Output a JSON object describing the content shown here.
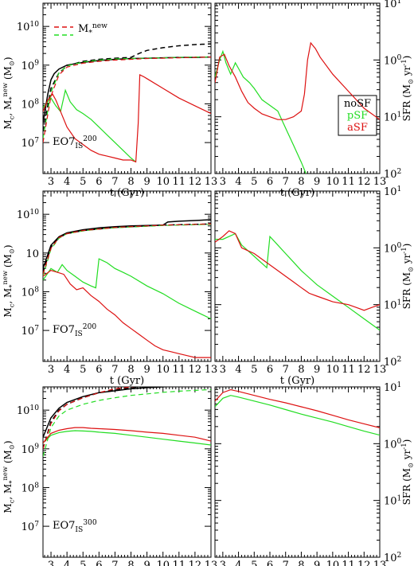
{
  "figure": {
    "xlabel": "t (Gyr)",
    "ylabel_left": "M_c, M_*^new (M_⊙)",
    "ylabel_right": "SFR (M_⊙ yr^-1)",
    "xticks": [
      "3",
      "4",
      "5",
      "6",
      "7",
      "8",
      "9",
      "10",
      "11",
      "12",
      "13"
    ],
    "legend_top": {
      "label": "M_*^new"
    },
    "legend_sfr": [
      "noSF",
      "pSF",
      "aSF"
    ],
    "colors": {
      "noSF": "#000000",
      "pSF": "#22dd22",
      "aSF": "#dd1111"
    }
  },
  "chart_data": [
    {
      "type": "line",
      "panel": "EO7_IS^200 mass",
      "annotation": "EO7_IS^200",
      "xlim": [
        2.5,
        13
      ],
      "ylim_log10": [
        6.2,
        10.6
      ],
      "yscale": "log",
      "yticks": [
        "10^7",
        "10^8",
        "10^9",
        "10^10"
      ],
      "series": [
        {
          "name": "noSF",
          "style": "solid",
          "x": [
            2.5,
            2.8,
            3.0,
            3.2,
            3.5,
            4,
            5,
            6,
            7,
            8,
            9,
            10,
            11,
            12,
            13
          ],
          "y": [
            7.5,
            8.25,
            8.62,
            8.78,
            8.9,
            9.0,
            9.07,
            9.12,
            9.15,
            9.17,
            9.18,
            9.19,
            9.2,
            9.2,
            9.21
          ]
        },
        {
          "name": "noSF M_*^new",
          "style": "dashed",
          "x": [
            2.5,
            3.0,
            3.5,
            4,
            5,
            6,
            7,
            8,
            8.5,
            9,
            10,
            11,
            12,
            13
          ],
          "y": [
            7.3,
            8.4,
            8.8,
            8.98,
            9.1,
            9.15,
            9.18,
            9.2,
            9.3,
            9.38,
            9.45,
            9.5,
            9.53,
            9.55
          ]
        },
        {
          "name": "pSF",
          "style": "solid",
          "x": [
            2.5,
            3,
            3.3,
            3.6,
            3.9,
            4.2,
            4.6,
            5,
            5.5,
            6,
            6.5,
            7,
            7.5,
            8,
            8.3
          ],
          "y": [
            7.9,
            8.15,
            7.95,
            7.8,
            8.35,
            8.05,
            7.85,
            7.75,
            7.6,
            7.4,
            7.2,
            7.0,
            6.8,
            6.6,
            6.5
          ]
        },
        {
          "name": "pSF M_*^new",
          "style": "dashed",
          "x": [
            2.5,
            3,
            3.5,
            4,
            5,
            6,
            7,
            8,
            9,
            10,
            11,
            12,
            13
          ],
          "y": [
            7.1,
            8.3,
            8.8,
            8.98,
            9.08,
            9.13,
            9.16,
            9.17,
            9.18,
            9.19,
            9.2,
            9.21,
            9.21
          ]
        },
        {
          "name": "aSF",
          "style": "solid",
          "x": [
            2.5,
            2.8,
            3.1,
            3.3,
            3.6,
            4,
            4.5,
            5,
            5.5,
            6,
            6.5,
            7,
            7.5,
            8,
            8.3,
            8.45,
            8.55,
            8.8,
            9,
            10,
            11,
            12,
            13
          ],
          "y": [
            7.8,
            8.1,
            8.25,
            8.1,
            7.8,
            7.4,
            7.1,
            6.95,
            6.8,
            6.7,
            6.65,
            6.6,
            6.55,
            6.55,
            6.5,
            7.5,
            8.75,
            8.7,
            8.65,
            8.4,
            8.15,
            7.95,
            7.75
          ]
        },
        {
          "name": "aSF M_*^new",
          "style": "dashed",
          "x": [
            2.5,
            3,
            3.5,
            4,
            5,
            6,
            7,
            8,
            9,
            10,
            11,
            12,
            13
          ],
          "y": [
            7.0,
            8.2,
            8.75,
            8.95,
            9.05,
            9.1,
            9.13,
            9.15,
            9.17,
            9.18,
            9.19,
            9.2,
            9.21
          ]
        }
      ]
    },
    {
      "type": "line",
      "panel": "EO7_IS^200 SFR",
      "xlim": [
        2.5,
        13
      ],
      "ylim_log10": [
        -2,
        1
      ],
      "yscale": "log",
      "yaxis": "right",
      "yticks": [
        "10^1",
        "10^0",
        "10^1",
        "10^2"
      ],
      "series": [
        {
          "name": "pSF",
          "x": [
            2.5,
            2.8,
            3.0,
            3.2,
            3.5,
            3.8,
            4.0,
            4.3,
            4.7,
            5,
            5.5,
            6,
            6.5,
            7,
            7.5,
            8,
            8.3
          ],
          "y": [
            -0.3,
            0.0,
            0.15,
            -0.05,
            -0.25,
            -0.05,
            -0.15,
            -0.3,
            -0.4,
            -0.5,
            -0.7,
            -0.8,
            -0.9,
            -1.2,
            -1.5,
            -1.8,
            -2.0
          ]
        },
        {
          "name": "aSF",
          "x": [
            2.5,
            2.8,
            3.1,
            3.4,
            3.8,
            4.2,
            4.6,
            5,
            5.5,
            6,
            6.5,
            7,
            7.5,
            8,
            8.2,
            8.4,
            8.6,
            8.9,
            9.2,
            10,
            11,
            12,
            13
          ],
          "y": [
            -0.4,
            0.05,
            0.1,
            -0.1,
            -0.3,
            -0.55,
            -0.75,
            -0.85,
            -0.95,
            -1.0,
            -1.05,
            -1.05,
            -1.0,
            -0.9,
            -0.6,
            0.0,
            0.3,
            0.2,
            0.05,
            -0.25,
            -0.55,
            -0.85,
            -1.05
          ]
        }
      ]
    },
    {
      "type": "line",
      "panel": "FO7_IS^200 mass",
      "annotation": "FO7_IS^200",
      "xlim": [
        2.5,
        13
      ],
      "ylim_log10": [
        6.2,
        10.6
      ],
      "yscale": "log",
      "yticks": [
        "10^7",
        "10^8",
        "10",
        "10^10"
      ],
      "series": [
        {
          "name": "noSF",
          "style": "solid",
          "x": [
            2.5,
            3,
            3.5,
            4,
            5,
            6,
            7,
            8,
            9,
            10,
            10.3,
            11,
            12,
            13
          ],
          "y": [
            8.6,
            9.2,
            9.42,
            9.52,
            9.6,
            9.65,
            9.68,
            9.7,
            9.71,
            9.72,
            9.8,
            9.82,
            9.84,
            9.86
          ]
        },
        {
          "name": "noSF M_*^new",
          "style": "dashed",
          "x": [
            2.5,
            3,
            3.5,
            4,
            5,
            6,
            7,
            8,
            9,
            10,
            11,
            12,
            13
          ],
          "y": [
            8.5,
            9.15,
            9.4,
            9.5,
            9.58,
            9.62,
            9.66,
            9.68,
            9.7,
            9.72,
            9.73,
            9.74,
            9.75
          ]
        },
        {
          "name": "pSF",
          "style": "solid",
          "x": [
            2.5,
            3,
            3.4,
            3.7,
            4,
            4.5,
            5,
            5.5,
            5.8,
            6,
            6.5,
            7,
            7.5,
            8,
            9,
            10,
            11,
            12,
            13
          ],
          "y": [
            8.3,
            8.6,
            8.5,
            8.7,
            8.55,
            8.4,
            8.25,
            8.15,
            8.1,
            8.85,
            8.75,
            8.6,
            8.5,
            8.4,
            8.15,
            7.95,
            7.7,
            7.5,
            7.3
          ]
        },
        {
          "name": "pSF M_*^new",
          "style": "dashed",
          "x": [
            2.5,
            3,
            3.5,
            4,
            5,
            6,
            7,
            8,
            9,
            10,
            11,
            12,
            13
          ],
          "y": [
            8.4,
            9.1,
            9.38,
            9.5,
            9.57,
            9.62,
            9.65,
            9.67,
            9.69,
            9.71,
            9.72,
            9.73,
            9.74
          ]
        },
        {
          "name": "aSF",
          "style": "solid",
          "x": [
            2.5,
            3,
            3.4,
            3.8,
            4.2,
            4.6,
            5,
            5.5,
            6,
            6.5,
            7,
            7.5,
            8,
            8.5,
            9,
            9.5,
            10,
            10.5,
            11,
            11.5,
            12,
            12.5,
            13
          ],
          "y": [
            8.4,
            8.55,
            8.5,
            8.45,
            8.2,
            8.05,
            8.1,
            7.9,
            7.75,
            7.55,
            7.4,
            7.2,
            7.05,
            6.9,
            6.75,
            6.6,
            6.5,
            6.45,
            6.4,
            6.35,
            6.3,
            6.3,
            6.3
          ]
        },
        {
          "name": "aSF M_*^new",
          "style": "dashed",
          "x": [
            2.5,
            3,
            3.5,
            4,
            5,
            6,
            7,
            8,
            9,
            10,
            11,
            12,
            13
          ],
          "y": [
            8.45,
            9.12,
            9.4,
            9.5,
            9.58,
            9.62,
            9.66,
            9.68,
            9.7,
            9.72,
            9.73,
            9.74,
            9.75
          ]
        }
      ]
    },
    {
      "type": "line",
      "panel": "FO7_IS^200 SFR",
      "xlim": [
        2.5,
        13
      ],
      "ylim_log10": [
        -2,
        1
      ],
      "yscale": "log",
      "yaxis": "right",
      "yticks": [
        "10^1",
        "10^0",
        "10^1",
        "10^2"
      ],
      "series": [
        {
          "name": "pSF",
          "x": [
            2.5,
            3,
            3.4,
            3.8,
            4.2,
            4.6,
            5,
            5.4,
            5.8,
            6,
            6.5,
            7,
            7.5,
            8,
            9,
            10,
            11,
            12,
            13
          ],
          "y": [
            0.15,
            0.15,
            0.2,
            0.25,
            0.05,
            -0.05,
            -0.15,
            -0.25,
            -0.35,
            0.2,
            0.05,
            -0.1,
            -0.25,
            -0.4,
            -0.65,
            -0.85,
            -1.05,
            -1.25,
            -1.45
          ]
        },
        {
          "name": "aSF",
          "x": [
            2.5,
            3,
            3.4,
            3.8,
            4.2,
            4.6,
            5,
            5.5,
            6,
            6.5,
            7,
            7.5,
            8,
            8.5,
            9,
            9.5,
            10,
            11,
            11.5,
            12,
            12.5,
            13
          ],
          "y": [
            0.1,
            0.2,
            0.3,
            0.25,
            0.0,
            -0.05,
            -0.1,
            -0.2,
            -0.3,
            -0.4,
            -0.5,
            -0.6,
            -0.7,
            -0.8,
            -0.85,
            -0.9,
            -0.95,
            -1.0,
            -1.05,
            -1.1,
            -1.05,
            -1.0
          ]
        }
      ]
    },
    {
      "type": "line",
      "panel": "EO7_IS^300 mass",
      "annotation": "EO7_IS^300",
      "xlim": [
        2.5,
        13
      ],
      "ylim_log10": [
        6.2,
        10.6
      ],
      "yscale": "log",
      "yticks": [
        "10^7",
        "10^8",
        "10^9",
        "10^10"
      ],
      "series": [
        {
          "name": "noSF",
          "style": "solid",
          "x": [
            2.5,
            3,
            3.5,
            4,
            5,
            6,
            7,
            8,
            9,
            10,
            11,
            12,
            13
          ],
          "y": [
            9.3,
            9.8,
            10.05,
            10.2,
            10.35,
            10.45,
            10.5,
            10.55,
            10.58,
            10.6,
            10.62,
            10.63,
            10.65
          ]
        },
        {
          "name": "noSF M_*^new",
          "style": "dashed",
          "x": [
            2.5,
            3,
            3.5,
            4,
            5,
            6,
            7,
            8,
            9,
            10,
            11,
            12,
            13
          ],
          "y": [
            9.0,
            9.7,
            10.0,
            10.15,
            10.32,
            10.45,
            10.53,
            10.58,
            10.62,
            10.65,
            10.68,
            10.7,
            10.72
          ]
        },
        {
          "name": "pSF",
          "style": "solid",
          "x": [
            2.5,
            3,
            3.5,
            4,
            4.5,
            5,
            5.5,
            6,
            7,
            8,
            9,
            10,
            11,
            12,
            13
          ],
          "y": [
            9.15,
            9.35,
            9.42,
            9.45,
            9.47,
            9.46,
            9.45,
            9.43,
            9.4,
            9.35,
            9.3,
            9.25,
            9.2,
            9.15,
            9.1
          ]
        },
        {
          "name": "pSF M_*^new",
          "style": "dashed",
          "x": [
            2.5,
            3,
            3.5,
            4,
            5,
            6,
            7,
            8,
            9,
            10,
            11,
            12,
            13
          ],
          "y": [
            8.8,
            9.55,
            9.85,
            10.0,
            10.15,
            10.25,
            10.32,
            10.38,
            10.42,
            10.46,
            10.49,
            10.51,
            10.53
          ]
        },
        {
          "name": "aSF",
          "style": "solid",
          "x": [
            2.5,
            3,
            3.5,
            4,
            4.5,
            5,
            5.5,
            6,
            7,
            8,
            9,
            10,
            11,
            12,
            13
          ],
          "y": [
            9.15,
            9.4,
            9.48,
            9.52,
            9.55,
            9.55,
            9.53,
            9.52,
            9.5,
            9.47,
            9.43,
            9.4,
            9.35,
            9.3,
            9.2
          ]
        },
        {
          "name": "aSF M_*^new",
          "style": "dashed",
          "x": [
            2.5,
            3,
            3.5,
            4,
            5,
            6,
            7,
            8,
            9,
            10,
            11,
            12,
            13
          ],
          "y": [
            9.0,
            9.65,
            9.98,
            10.15,
            10.32,
            10.45,
            10.55,
            10.6,
            10.65,
            10.68,
            10.71,
            10.73,
            10.75
          ]
        }
      ]
    },
    {
      "type": "line",
      "panel": "EO7_IS^300 SFR",
      "xlim": [
        2.5,
        13
      ],
      "ylim_log10": [
        -2,
        1
      ],
      "yscale": "log",
      "yaxis": "right",
      "yticks": [
        "10^1",
        "10^0",
        "10^1",
        "10^2"
      ],
      "series": [
        {
          "name": "pSF",
          "x": [
            2.5,
            3,
            3.5,
            4,
            5,
            6,
            7,
            8,
            9,
            10,
            11,
            12,
            13
          ],
          "y": [
            0.65,
            0.8,
            0.85,
            0.82,
            0.75,
            0.68,
            0.6,
            0.52,
            0.45,
            0.38,
            0.3,
            0.22,
            0.15
          ]
        },
        {
          "name": "aSF",
          "x": [
            2.5,
            3,
            3.5,
            4,
            5,
            6,
            7,
            8,
            9,
            10,
            11,
            12,
            13
          ],
          "y": [
            0.75,
            0.9,
            0.95,
            0.92,
            0.85,
            0.78,
            0.72,
            0.65,
            0.58,
            0.5,
            0.42,
            0.35,
            0.28
          ]
        }
      ]
    }
  ]
}
